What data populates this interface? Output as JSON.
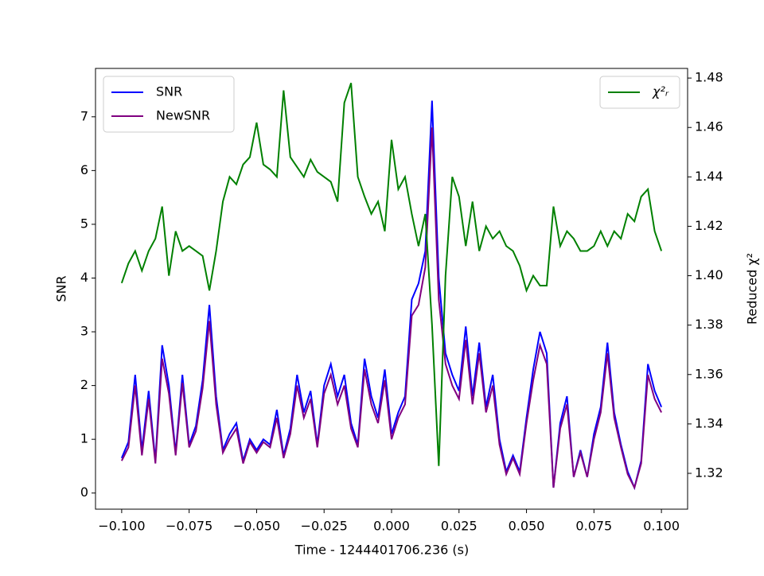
{
  "chart_data": {
    "type": "line",
    "xlabel": "Time - 1244401706.236 (s)",
    "ylabel": "SNR",
    "y2label": "Reduced χ²",
    "x": [
      -0.1,
      -0.0975,
      -0.095,
      -0.0925,
      -0.09,
      -0.0875,
      -0.085,
      -0.0825,
      -0.08,
      -0.0775,
      -0.075,
      -0.0725,
      -0.07,
      -0.0675,
      -0.065,
      -0.0625,
      -0.06,
      -0.0575,
      -0.055,
      -0.0525,
      -0.05,
      -0.0475,
      -0.045,
      -0.0425,
      -0.04,
      -0.0375,
      -0.035,
      -0.0325,
      -0.03,
      -0.0275,
      -0.025,
      -0.0225,
      -0.02,
      -0.0175,
      -0.015,
      -0.0125,
      -0.01,
      -0.0075,
      -0.005,
      -0.0025,
      0,
      0.0025,
      0.005,
      0.0075,
      0.01,
      0.0125,
      0.015,
      0.0175,
      0.02,
      0.0225,
      0.025,
      0.0275,
      0.03,
      0.0325,
      0.035,
      0.0375,
      0.04,
      0.0425,
      0.045,
      0.0475,
      0.05,
      0.0525,
      0.055,
      0.0575,
      0.06,
      0.0625,
      0.065,
      0.0675,
      0.07,
      0.0725,
      0.075,
      0.0775,
      0.08,
      0.0825,
      0.085,
      0.0875,
      0.09,
      0.0925,
      0.095,
      0.0975,
      0.1
    ],
    "series": [
      {
        "name": "SNR",
        "color": "#0000ff",
        "values": [
          0.65,
          0.95,
          2.2,
          0.8,
          1.9,
          0.6,
          2.75,
          2.0,
          0.75,
          2.2,
          0.9,
          1.25,
          2.1,
          3.5,
          1.8,
          0.8,
          1.1,
          1.3,
          0.6,
          1.0,
          0.8,
          1.0,
          0.9,
          1.55,
          0.7,
          1.2,
          2.2,
          1.5,
          1.9,
          0.9,
          2.0,
          2.4,
          1.8,
          2.2,
          1.3,
          0.9,
          2.5,
          1.8,
          1.4,
          2.3,
          1.1,
          1.5,
          1.8,
          3.6,
          3.9,
          4.5,
          7.3,
          4.0,
          2.6,
          2.2,
          1.9,
          3.1,
          1.8,
          2.8,
          1.6,
          2.2,
          1.0,
          0.4,
          0.7,
          0.4,
          1.4,
          2.3,
          3.0,
          2.6,
          0.1,
          1.3,
          1.8,
          0.3,
          0.8,
          0.3,
          1.1,
          1.6,
          2.8,
          1.5,
          0.9,
          0.4,
          0.1,
          0.6,
          2.4,
          1.9,
          1.6
        ]
      },
      {
        "name": "NewSNR",
        "color": "#800080",
        "values": [
          0.6,
          0.85,
          2.0,
          0.7,
          1.75,
          0.55,
          2.5,
          1.85,
          0.7,
          2.05,
          0.85,
          1.15,
          1.95,
          3.2,
          1.65,
          0.75,
          1.0,
          1.2,
          0.55,
          0.95,
          0.75,
          0.95,
          0.85,
          1.4,
          0.65,
          1.1,
          2.0,
          1.4,
          1.75,
          0.85,
          1.85,
          2.2,
          1.65,
          2.0,
          1.2,
          0.85,
          2.3,
          1.65,
          1.3,
          2.1,
          1.0,
          1.4,
          1.65,
          3.3,
          3.5,
          4.2,
          6.8,
          3.6,
          2.4,
          2.0,
          1.75,
          2.85,
          1.65,
          2.6,
          1.5,
          2.0,
          0.9,
          0.35,
          0.65,
          0.35,
          1.3,
          2.1,
          2.75,
          2.4,
          0.1,
          1.2,
          1.65,
          0.3,
          0.75,
          0.3,
          1.0,
          1.5,
          2.6,
          1.4,
          0.85,
          0.35,
          0.1,
          0.55,
          2.2,
          1.75,
          1.5
        ]
      },
      {
        "name": "χ²ᵣ",
        "color": "#008000",
        "axis": "y2",
        "values": [
          1.397,
          1.405,
          1.41,
          1.402,
          1.41,
          1.415,
          1.428,
          1.4,
          1.418,
          1.41,
          1.412,
          1.41,
          1.408,
          1.394,
          1.41,
          1.43,
          1.44,
          1.437,
          1.445,
          1.448,
          1.462,
          1.445,
          1.443,
          1.44,
          1.475,
          1.448,
          1.444,
          1.44,
          1.447,
          1.442,
          1.44,
          1.438,
          1.43,
          1.47,
          1.478,
          1.44,
          1.432,
          1.425,
          1.43,
          1.418,
          1.455,
          1.435,
          1.44,
          1.425,
          1.412,
          1.425,
          1.38,
          1.323,
          1.4,
          1.44,
          1.432,
          1.412,
          1.43,
          1.41,
          1.42,
          1.415,
          1.418,
          1.412,
          1.41,
          1.404,
          1.394,
          1.4,
          1.396,
          1.396,
          1.428,
          1.412,
          1.418,
          1.415,
          1.41,
          1.41,
          1.412,
          1.418,
          1.412,
          1.418,
          1.415,
          1.425,
          1.422,
          1.432,
          1.435,
          1.418,
          1.41
        ]
      }
    ],
    "xlim": [
      -0.1097,
      0.1097
    ],
    "xticks": [
      {
        "value": -0.1,
        "label": "−0.100"
      },
      {
        "value": -0.075,
        "label": "−0.075"
      },
      {
        "value": -0.05,
        "label": "−0.050"
      },
      {
        "value": -0.025,
        "label": "−0.025"
      },
      {
        "value": 0,
        "label": "0.000"
      },
      {
        "value": 0.025,
        "label": "0.025"
      },
      {
        "value": 0.05,
        "label": "0.050"
      },
      {
        "value": 0.075,
        "label": "0.075"
      },
      {
        "value": 0.1,
        "label": "0.100"
      }
    ],
    "ylim": [
      -0.3,
      7.9
    ],
    "yticks": [
      0,
      1,
      2,
      3,
      4,
      5,
      6,
      7
    ],
    "y2lim": [
      1.3055,
      1.4839
    ],
    "y2ticks": [
      1.32,
      1.34,
      1.36,
      1.38,
      {
        "value": 1.4,
        "label": "1.40"
      },
      1.42,
      1.44,
      1.46,
      1.48
    ],
    "legend": "upper left",
    "legend2": "upper right"
  }
}
